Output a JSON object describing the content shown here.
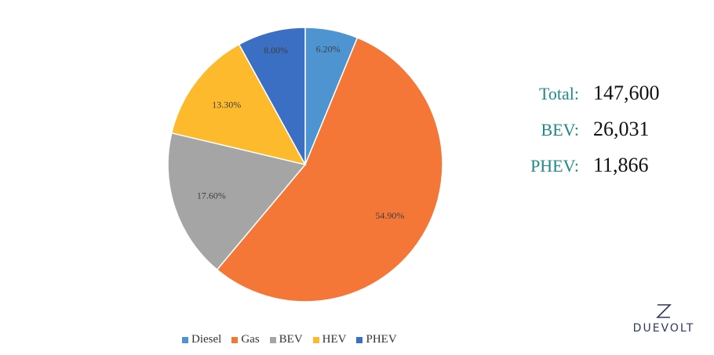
{
  "chart_data": {
    "type": "pie",
    "categories": [
      "Diesel",
      "Gas",
      "BEV",
      "HEV",
      "PHEV"
    ],
    "values": [
      6.2,
      54.9,
      17.6,
      13.3,
      8.0
    ],
    "labels": [
      "6.20%",
      "54.90%",
      "17.60%",
      "13.30%",
      "8.00%"
    ],
    "colors": [
      "#4e94d1",
      "#f47737",
      "#a5a5a5",
      "#fdba2d",
      "#3a6fc4"
    ],
    "legend_position": "bottom"
  },
  "stats": [
    {
      "label": "Total:",
      "value": "147,600"
    },
    {
      "label": "BEV:",
      "value": "26,031"
    },
    {
      "label": "PHEV:",
      "value": "11,866"
    }
  ],
  "logo": {
    "text": "DUEVOLT",
    "icon": "duevolt-logo-icon"
  }
}
